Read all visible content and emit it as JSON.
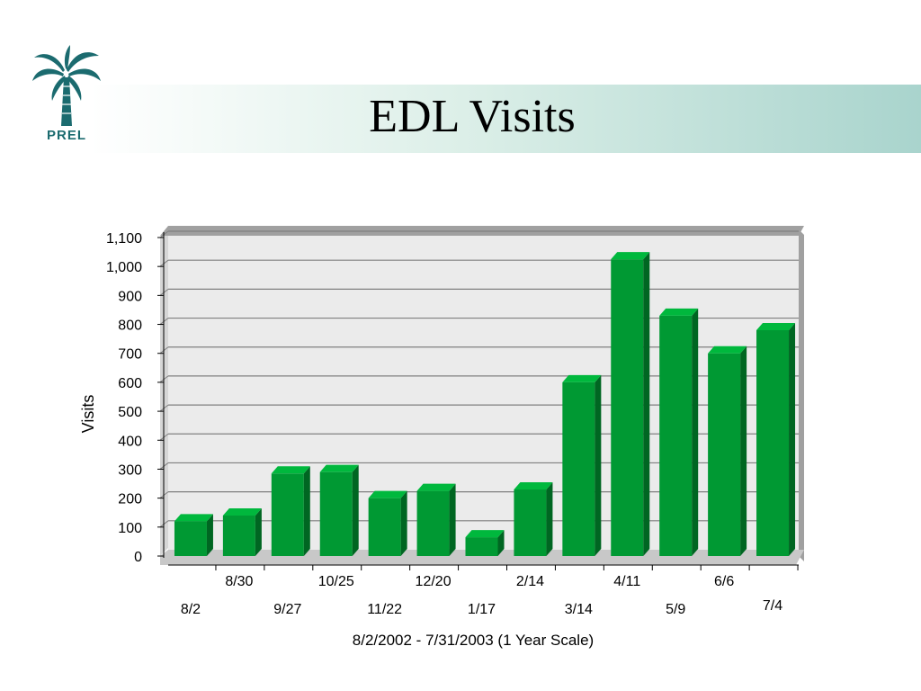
{
  "slide": {
    "title": "EDL Visits",
    "logo_text": "PREL"
  },
  "colors": {
    "bar_front": "#009933",
    "bar_side": "#006622",
    "bar_top": "#00b83d",
    "plot_wall": "#ebebeb",
    "wall_side": "#a0a0a0",
    "floor": "#c8c8c8",
    "gridline": "#808080",
    "header_band_end": "#a9d4cd",
    "logo": "#1b6b6f"
  },
  "chart_data": {
    "type": "bar",
    "title": "",
    "ylabel": "Visits",
    "xlabel": "8/2/2002 - 7/31/2003 (1 Year Scale)",
    "ylim": [
      0,
      1100
    ],
    "yticks": [
      0,
      100,
      200,
      300,
      400,
      500,
      600,
      700,
      800,
      900,
      1000,
      1100
    ],
    "ytick_labels": [
      "0",
      "100",
      "200",
      "300",
      "400",
      "500",
      "600",
      "700",
      "800",
      "900",
      "1,000",
      "1,100"
    ],
    "categories": [
      "8/2",
      "8/30",
      "9/27",
      "10/25",
      "11/22",
      "12/20",
      "1/17",
      "2/14",
      "3/14",
      "4/11",
      "5/9",
      "6/6",
      "7/4"
    ],
    "values": [
      120,
      140,
      285,
      290,
      200,
      225,
      65,
      230,
      600,
      1025,
      830,
      700,
      780
    ],
    "grid": true,
    "legend": "none"
  }
}
